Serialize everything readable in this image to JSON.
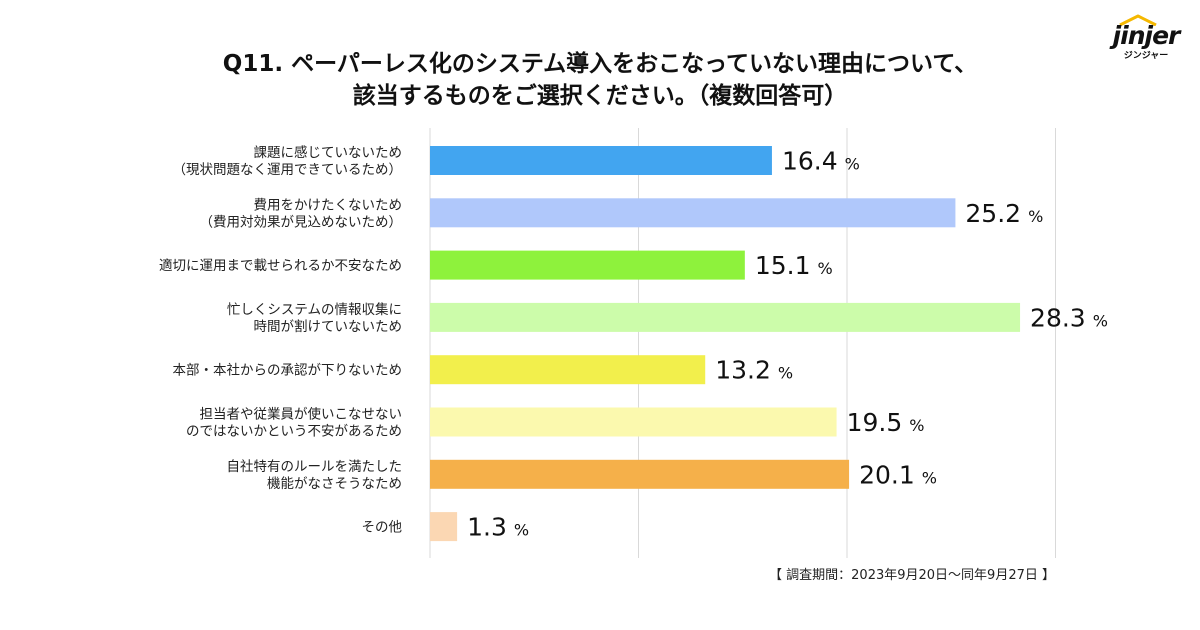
{
  "brand": {
    "logo_text": "jinjer",
    "logo_sub": "ジンジャー",
    "logo_color": "#f5b800"
  },
  "chart_data": {
    "type": "bar",
    "orientation": "horizontal",
    "title_lines": [
      "Q11. ペーパーレス化のシステム導入をおこなっていない理由について、",
      "該当するものをご選択ください。（複数回答可）"
    ],
    "categories": [
      [
        "課題に感じていないため",
        "（現状問題なく運用できているため）"
      ],
      [
        "費用をかけたくないため",
        "（費用対効果が見込めないため）"
      ],
      [
        "適切に運用まで載せられるか不安なため"
      ],
      [
        "忙しくシステムの情報収集に",
        "時間が割けていないため"
      ],
      [
        "本部・本社からの承認が下りないため"
      ],
      [
        "担当者や従業員が使いこなせない",
        "のではないかという不安があるため"
      ],
      [
        "自社特有のルールを満たした",
        "機能がなさそうなため"
      ],
      [
        "その他"
      ]
    ],
    "values": [
      16.4,
      25.2,
      15.1,
      28.3,
      13.2,
      19.5,
      20.1,
      1.3
    ],
    "value_labels": [
      "16.4",
      "25.2",
      "15.1",
      "28.3",
      "13.2",
      "19.5",
      "20.1",
      "1.3"
    ],
    "unit": "%",
    "colors": [
      "#42a5f0",
      "#b0c8fb",
      "#8ef23c",
      "#ccfcaa",
      "#f2ef4c",
      "#fbf9ae",
      "#f5b04a",
      "#fbd7b3"
    ],
    "grid_color": "#d9d9d9",
    "xlim": [
      0,
      30
    ],
    "gridlines_at": [
      0,
      10,
      20,
      30
    ],
    "grid": true,
    "legend": "none"
  },
  "footnote": "【 調査期間：2023年9月20日～同年9月27日 】"
}
